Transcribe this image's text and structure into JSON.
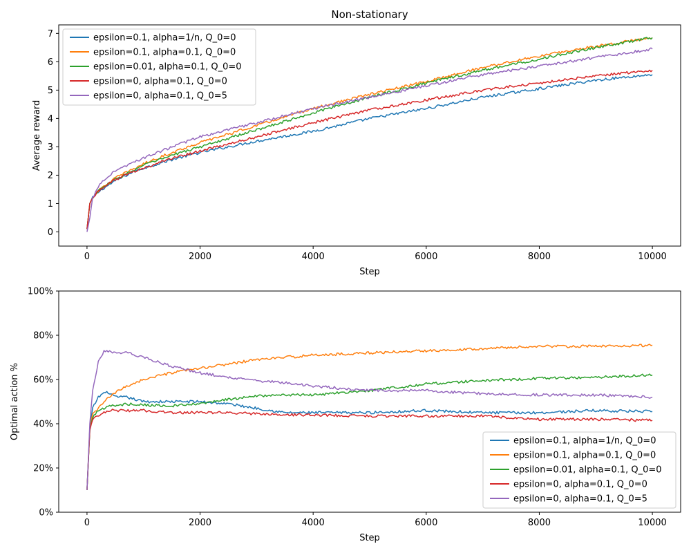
{
  "chart_data": [
    {
      "type": "line",
      "title": "Non-stationary",
      "xlabel": "Step",
      "ylabel": "Average reward",
      "xlim": [
        -500,
        10500
      ],
      "ylim": [
        -0.5,
        7.3
      ],
      "x_ticks": [
        0,
        2000,
        4000,
        6000,
        8000,
        10000
      ],
      "x_tick_labels": [
        "0",
        "2000",
        "4000",
        "6000",
        "8000",
        "10000"
      ],
      "y_ticks": [
        0,
        1,
        2,
        3,
        4,
        5,
        6,
        7
      ],
      "y_tick_labels": [
        "0",
        "1",
        "2",
        "3",
        "4",
        "5",
        "6",
        "7"
      ],
      "grid": false,
      "legend_position": "top-left",
      "x": [
        0,
        50,
        100,
        200,
        300,
        500,
        800,
        1000,
        1500,
        2000,
        2500,
        3000,
        4000,
        5000,
        6000,
        7000,
        8000,
        9000,
        10000
      ],
      "series": [
        {
          "name": "epsilon=0.1, alpha=1/n, Q_0=0",
          "color": "#1f77b4",
          "values": [
            0.1,
            1.0,
            1.2,
            1.4,
            1.55,
            1.8,
            2.1,
            2.25,
            2.55,
            2.8,
            3.0,
            3.2,
            3.55,
            4.0,
            4.35,
            4.75,
            5.05,
            5.35,
            5.55
          ]
        },
        {
          "name": "epsilon=0.1, alpha=0.1, Q_0=0",
          "color": "#ff7f0e",
          "values": [
            0.1,
            1.0,
            1.2,
            1.45,
            1.6,
            1.9,
            2.2,
            2.4,
            2.8,
            3.15,
            3.45,
            3.75,
            4.35,
            4.85,
            5.3,
            5.8,
            6.2,
            6.55,
            6.85
          ]
        },
        {
          "name": "epsilon=0.01, alpha=0.1, Q_0=0",
          "color": "#2ca02c",
          "values": [
            0.1,
            1.0,
            1.2,
            1.45,
            1.6,
            1.85,
            2.15,
            2.35,
            2.7,
            3.0,
            3.3,
            3.6,
            4.2,
            4.75,
            5.25,
            5.7,
            6.1,
            6.5,
            6.85
          ]
        },
        {
          "name": "epsilon=0, alpha=0.1, Q_0=0",
          "color": "#d62728",
          "values": [
            0.1,
            1.0,
            1.2,
            1.45,
            1.6,
            1.85,
            2.1,
            2.25,
            2.6,
            2.85,
            3.1,
            3.35,
            3.85,
            4.3,
            4.65,
            5.0,
            5.25,
            5.5,
            5.7
          ]
        },
        {
          "name": "epsilon=0, alpha=0.1, Q_0=5",
          "color": "#9467bd",
          "values": [
            0.0,
            0.5,
            1.2,
            1.6,
            1.85,
            2.15,
            2.45,
            2.6,
            3.0,
            3.35,
            3.6,
            3.85,
            4.35,
            4.75,
            5.15,
            5.55,
            5.85,
            6.15,
            6.45
          ]
        }
      ]
    },
    {
      "type": "line",
      "title": "",
      "xlabel": "Step",
      "ylabel": "Optimal action %",
      "xlim": [
        -500,
        10500
      ],
      "ylim": [
        0,
        100
      ],
      "x_ticks": [
        0,
        2000,
        4000,
        6000,
        8000,
        10000
      ],
      "x_tick_labels": [
        "0",
        "2000",
        "4000",
        "6000",
        "8000",
        "10000"
      ],
      "y_ticks": [
        0,
        20,
        40,
        60,
        80,
        100
      ],
      "y_tick_labels": [
        "0%",
        "20%",
        "40%",
        "60%",
        "80%",
        "100%"
      ],
      "grid": false,
      "legend_position": "lower-right",
      "x": [
        0,
        50,
        100,
        200,
        300,
        400,
        500,
        700,
        1000,
        1500,
        2000,
        2500,
        3000,
        3500,
        4000,
        5000,
        6000,
        7000,
        8000,
        9000,
        10000
      ],
      "series": [
        {
          "name": "epsilon=0.1, alpha=1/n, Q_0=0",
          "color": "#1f77b4",
          "values": [
            10,
            38,
            47,
            52,
            54,
            54,
            52,
            52,
            50,
            50,
            50,
            49,
            47,
            45,
            45,
            45,
            46,
            45,
            45,
            46,
            45.5
          ]
        },
        {
          "name": "epsilon=0.1, alpha=0.1, Q_0=0",
          "color": "#ff7f0e",
          "values": [
            10,
            38,
            44,
            47,
            50,
            52,
            54,
            57,
            60,
            63,
            65,
            67,
            69,
            70,
            71,
            72,
            73,
            74,
            75,
            75,
            75.5
          ]
        },
        {
          "name": "epsilon=0.01, alpha=0.1, Q_0=0",
          "color": "#2ca02c",
          "values": [
            10,
            37,
            43,
            46,
            47,
            48,
            48,
            49,
            48.5,
            48,
            49,
            51,
            52.5,
            53,
            53,
            55,
            58,
            59.5,
            60.5,
            61,
            62
          ]
        },
        {
          "name": "epsilon=0, alpha=0.1, Q_0=0",
          "color": "#d62728",
          "values": [
            10,
            37,
            42,
            44,
            45,
            46,
            46,
            46,
            46,
            45,
            45,
            45,
            44.5,
            44,
            44,
            43.5,
            43.5,
            43.5,
            42,
            42,
            41.5
          ]
        },
        {
          "name": "epsilon=0, alpha=0.1, Q_0=5",
          "color": "#9467bd",
          "values": [
            10,
            40,
            55,
            68,
            73,
            73,
            72,
            72,
            70,
            66,
            63,
            61,
            59.5,
            58.5,
            57,
            55,
            55,
            53.5,
            53,
            53,
            52
          ]
        }
      ]
    }
  ]
}
